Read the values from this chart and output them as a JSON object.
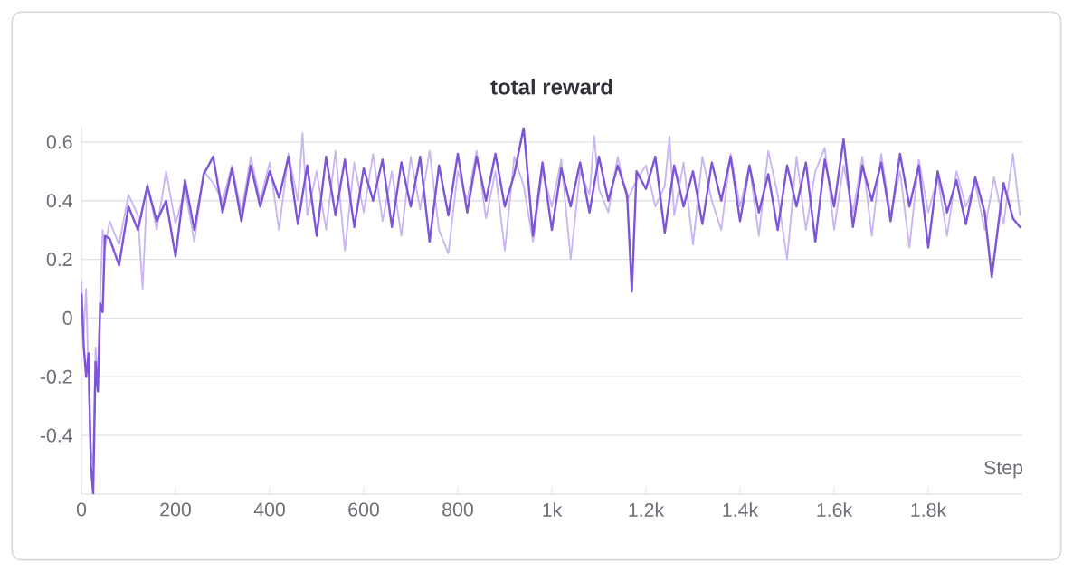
{
  "chart_data": {
    "type": "line",
    "title": "total reward",
    "xlabel": "Step",
    "series": [
      {
        "color": "#c9b6f0",
        "x": [
          0,
          5,
          10,
          15,
          20,
          25,
          30,
          35,
          40,
          45,
          50,
          60,
          80,
          100,
          120,
          130,
          140,
          160,
          180,
          200,
          220,
          240,
          260,
          280,
          300,
          320,
          340,
          360,
          380,
          400,
          420,
          440,
          460,
          470,
          480,
          500,
          520,
          540,
          560,
          580,
          600,
          620,
          640,
          660,
          680,
          700,
          720,
          740,
          760,
          780,
          800,
          820,
          840,
          860,
          880,
          900,
          920,
          940,
          960,
          980,
          1000,
          1020,
          1040,
          1060,
          1080,
          1090,
          1100,
          1120,
          1140,
          1160,
          1180,
          1200,
          1220,
          1240,
          1250,
          1260,
          1280,
          1300,
          1320,
          1340,
          1360,
          1380,
          1400,
          1420,
          1440,
          1460,
          1480,
          1500,
          1520,
          1540,
          1560,
          1580,
          1600,
          1620,
          1640,
          1660,
          1680,
          1700,
          1720,
          1740,
          1760,
          1780,
          1800,
          1820,
          1840,
          1860,
          1880,
          1900,
          1920,
          1940,
          1960,
          1980,
          1995
        ],
        "values": [
          0.13,
          -0.05,
          0.1,
          -0.2,
          -0.45,
          -0.5,
          -0.1,
          -0.2,
          0.08,
          0.3,
          0.24,
          0.33,
          0.25,
          0.42,
          0.35,
          0.1,
          0.46,
          0.3,
          0.5,
          0.32,
          0.44,
          0.26,
          0.5,
          0.46,
          0.4,
          0.52,
          0.36,
          0.55,
          0.4,
          0.53,
          0.3,
          0.56,
          0.4,
          0.63,
          0.35,
          0.5,
          0.3,
          0.57,
          0.23,
          0.53,
          0.36,
          0.56,
          0.33,
          0.5,
          0.28,
          0.55,
          0.37,
          0.57,
          0.3,
          0.22,
          0.5,
          0.4,
          0.57,
          0.34,
          0.5,
          0.23,
          0.55,
          0.45,
          0.26,
          0.5,
          0.38,
          0.54,
          0.2,
          0.5,
          0.42,
          0.62,
          0.44,
          0.36,
          0.55,
          0.4,
          0.47,
          0.52,
          0.38,
          0.45,
          0.62,
          0.35,
          0.53,
          0.25,
          0.55,
          0.4,
          0.3,
          0.56,
          0.38,
          0.52,
          0.28,
          0.57,
          0.42,
          0.2,
          0.55,
          0.3,
          0.5,
          0.58,
          0.3,
          0.52,
          0.36,
          0.55,
          0.28,
          0.56,
          0.35,
          0.5,
          0.24,
          0.54,
          0.36,
          0.48,
          0.28,
          0.5,
          0.38,
          0.46,
          0.3,
          0.48,
          0.32,
          0.56,
          0.35
        ]
      },
      {
        "color": "#7e55d6",
        "x": [
          0,
          5,
          10,
          15,
          20,
          25,
          30,
          35,
          40,
          45,
          50,
          60,
          80,
          100,
          120,
          140,
          160,
          180,
          200,
          220,
          240,
          260,
          280,
          300,
          320,
          340,
          360,
          380,
          400,
          420,
          440,
          460,
          480,
          500,
          520,
          540,
          560,
          580,
          600,
          620,
          640,
          660,
          680,
          700,
          720,
          740,
          760,
          780,
          800,
          820,
          840,
          860,
          880,
          900,
          920,
          940,
          960,
          980,
          1000,
          1020,
          1040,
          1060,
          1080,
          1100,
          1120,
          1140,
          1160,
          1170,
          1180,
          1200,
          1220,
          1240,
          1260,
          1280,
          1300,
          1320,
          1340,
          1360,
          1380,
          1400,
          1420,
          1440,
          1460,
          1480,
          1500,
          1520,
          1540,
          1560,
          1580,
          1600,
          1620,
          1640,
          1660,
          1680,
          1700,
          1720,
          1740,
          1760,
          1780,
          1800,
          1820,
          1840,
          1860,
          1880,
          1900,
          1920,
          1935,
          1960,
          1980,
          1995
        ],
        "values": [
          0.08,
          -0.1,
          -0.2,
          -0.12,
          -0.5,
          -0.6,
          -0.15,
          -0.25,
          0.05,
          0.02,
          0.28,
          0.27,
          0.18,
          0.38,
          0.3,
          0.45,
          0.33,
          0.4,
          0.21,
          0.47,
          0.3,
          0.49,
          0.55,
          0.36,
          0.51,
          0.33,
          0.52,
          0.38,
          0.5,
          0.41,
          0.55,
          0.32,
          0.52,
          0.28,
          0.55,
          0.35,
          0.54,
          0.31,
          0.51,
          0.4,
          0.54,
          0.31,
          0.53,
          0.38,
          0.55,
          0.26,
          0.52,
          0.35,
          0.56,
          0.36,
          0.55,
          0.4,
          0.56,
          0.38,
          0.49,
          0.65,
          0.28,
          0.53,
          0.3,
          0.51,
          0.38,
          0.53,
          0.36,
          0.55,
          0.4,
          0.52,
          0.42,
          0.09,
          0.5,
          0.44,
          0.55,
          0.29,
          0.52,
          0.38,
          0.5,
          0.32,
          0.53,
          0.4,
          0.55,
          0.33,
          0.52,
          0.36,
          0.49,
          0.3,
          0.52,
          0.38,
          0.53,
          0.26,
          0.54,
          0.38,
          0.61,
          0.31,
          0.52,
          0.4,
          0.53,
          0.33,
          0.56,
          0.38,
          0.52,
          0.24,
          0.5,
          0.36,
          0.47,
          0.32,
          0.48,
          0.36,
          0.14,
          0.46,
          0.34,
          0.31
        ]
      }
    ],
    "xlim": [
      0,
      2000
    ],
    "ylim": [
      -0.6,
      0.65
    ],
    "xticks": [
      {
        "value": 0,
        "label": "0"
      },
      {
        "value": 200,
        "label": "200"
      },
      {
        "value": 400,
        "label": "400"
      },
      {
        "value": 600,
        "label": "600"
      },
      {
        "value": 800,
        "label": "800"
      },
      {
        "value": 1000,
        "label": "1k"
      },
      {
        "value": 1200,
        "label": "1.2k"
      },
      {
        "value": 1400,
        "label": "1.4k"
      },
      {
        "value": 1600,
        "label": "1.6k"
      },
      {
        "value": 1800,
        "label": "1.8k"
      }
    ],
    "yticks": [
      {
        "value": -0.4,
        "label": "-0.4"
      },
      {
        "value": -0.2,
        "label": "-0.2"
      },
      {
        "value": 0,
        "label": "0"
      },
      {
        "value": 0.2,
        "label": "0.2"
      },
      {
        "value": 0.4,
        "label": "0.4"
      },
      {
        "value": 0.6,
        "label": "0.6"
      }
    ],
    "grid": "y",
    "marker": "none",
    "line_style": "solid"
  }
}
